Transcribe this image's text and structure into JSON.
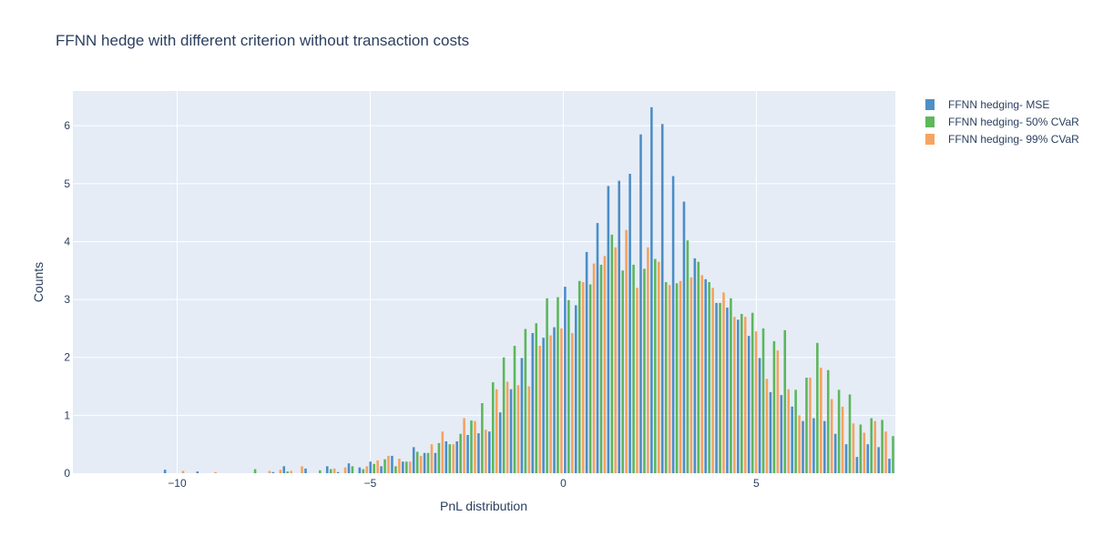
{
  "chart_data": {
    "type": "bar",
    "title": "FFNN hedge with different criterion without transaction costs",
    "xlabel": "PnL distribution",
    "ylabel": "Counts",
    "xlim": [
      -12.7,
      8.6
    ],
    "ylim": [
      0,
      6.6
    ],
    "x_ticks": [
      -10,
      -5,
      0,
      5
    ],
    "x_tick_labels": [
      "−10",
      "−5",
      "0",
      "5"
    ],
    "y_ticks": [
      0,
      1,
      2,
      3,
      4,
      5,
      6
    ],
    "y_tick_labels": [
      "0",
      "1",
      "2",
      "3",
      "4",
      "5",
      "6"
    ],
    "grid": true,
    "legend_position": "top-right",
    "bin_width": 0.28,
    "bin_start": -12.6,
    "series": [
      {
        "name": "FFNN hedging- MSE",
        "color": "#3b83c1",
        "values": [
          0,
          0,
          0,
          0,
          0,
          0,
          0,
          0,
          0.06,
          0,
          0,
          0.03,
          0,
          0,
          0,
          0,
          0,
          0,
          0.02,
          0.12,
          0,
          0.08,
          0,
          0.12,
          0.02,
          0.17,
          0.1,
          0.2,
          0.12,
          0.3,
          0.2,
          0.45,
          0.35,
          0.35,
          0.55,
          0.55,
          0.66,
          0.69,
          0.72,
          1.05,
          1.45,
          1.99,
          2.42,
          2.34,
          2.52,
          3.22,
          2.9,
          3.82,
          4.32,
          4.96,
          5.05,
          5.17,
          5.85,
          6.32,
          6.03,
          5.13,
          4.69,
          3.71,
          3.35,
          2.94,
          2.86,
          2.65,
          2.37,
          1.99,
          1.4,
          1.35,
          1.15,
          0.9,
          0.95,
          0.9,
          0.68,
          0.5,
          0.28,
          0.5,
          0.45,
          0.25,
          0.2,
          0.05,
          0.12,
          0.04,
          0.16,
          0.02,
          0,
          0,
          0,
          0.04
        ]
      },
      {
        "name": "FFNN hedging- 50% CVaR",
        "color": "#4db04a",
        "values": [
          0,
          0,
          0,
          0,
          0,
          0,
          0,
          0,
          0,
          0,
          0,
          0,
          0,
          0,
          0,
          0,
          0.07,
          0,
          0,
          0.03,
          0,
          0,
          0.05,
          0.07,
          0,
          0.12,
          0.07,
          0.16,
          0.24,
          0.12,
          0.2,
          0.37,
          0.35,
          0.52,
          0.5,
          0.68,
          0.91,
          1.21,
          1.57,
          2.0,
          2.2,
          2.49,
          2.59,
          3.02,
          3.04,
          2.99,
          3.32,
          3.26,
          3.6,
          4.12,
          3.5,
          3.6,
          3.53,
          3.7,
          3.3,
          3.28,
          4.02,
          3.65,
          3.3,
          2.94,
          3.02,
          2.75,
          2.77,
          2.5,
          2.28,
          2.47,
          1.44,
          1.65,
          2.25,
          1.78,
          1.44,
          1.36,
          0.84,
          0.95,
          0.92,
          0.64,
          0.38,
          0.28,
          0.4,
          0.2,
          0.2,
          0.07,
          0,
          0.04,
          0.04,
          0
        ]
      },
      {
        "name": "FFNN hedging- 99% CVaR",
        "color": "#f59a50",
        "values": [
          0,
          0,
          0,
          0,
          0,
          0,
          0,
          0,
          0,
          0.04,
          0,
          0,
          0.02,
          0,
          0,
          0,
          0,
          0.04,
          0.06,
          0.04,
          0.12,
          0,
          0,
          0.08,
          0.1,
          0,
          0.12,
          0.22,
          0.3,
          0.25,
          0.2,
          0.3,
          0.5,
          0.72,
          0.5,
          0.95,
          0.9,
          0.75,
          1.45,
          1.58,
          1.52,
          1.5,
          2.2,
          2.38,
          2.5,
          2.42,
          3.3,
          3.62,
          3.75,
          3.9,
          4.2,
          3.2,
          3.9,
          3.65,
          3.25,
          3.32,
          3.38,
          3.42,
          3.2,
          3.12,
          2.7,
          2.7,
          2.45,
          1.63,
          2.12,
          1.45,
          1.0,
          1.65,
          1.82,
          1.28,
          1.15,
          0.86,
          0.7,
          0.9,
          0.72,
          0.43,
          0.28,
          0.22,
          0.15,
          0.1,
          0.06,
          0.02,
          0,
          0,
          0,
          0
        ]
      }
    ]
  }
}
